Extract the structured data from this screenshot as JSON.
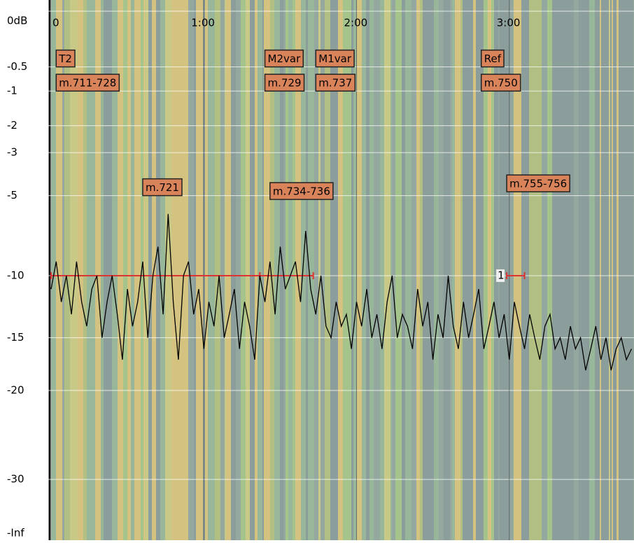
{
  "chart_data": {
    "type": "line",
    "xlim": [
      0,
      229
    ],
    "xticks": [
      {
        "value": 0,
        "label": "0"
      },
      {
        "value": 60,
        "label": "1:00"
      },
      {
        "value": 120,
        "label": "2:00"
      },
      {
        "value": 180,
        "label": "3:00"
      }
    ],
    "y_scale": "meter",
    "yticks": [
      {
        "value": 0,
        "label": "0dB"
      },
      -0.5,
      -1,
      -2,
      -3,
      -5,
      -10,
      -15,
      -20,
      -30
    ],
    "y_bottom_label": "-Inf",
    "grid": true,
    "x": [
      0,
      2,
      4,
      6,
      8,
      10,
      12,
      14,
      16,
      18,
      20,
      22,
      24,
      26,
      28,
      30,
      32,
      34,
      36,
      38,
      40,
      42,
      44,
      46,
      48,
      50,
      52,
      54,
      56,
      58,
      60,
      62,
      64,
      66,
      68,
      70,
      72,
      74,
      76,
      78,
      80,
      82,
      84,
      86,
      88,
      90,
      92,
      94,
      96,
      98,
      100,
      102,
      104,
      106,
      108,
      110,
      112,
      114,
      116,
      118,
      120,
      122,
      124,
      126,
      128,
      130,
      132,
      134,
      136,
      138,
      140,
      142,
      144,
      146,
      148,
      150,
      152,
      154,
      156,
      158,
      160,
      162,
      164,
      166,
      168,
      170,
      172,
      174,
      176,
      178,
      180,
      182,
      184,
      186,
      188,
      190,
      192,
      194,
      196,
      198,
      200,
      202,
      204,
      206,
      208,
      210,
      212,
      214,
      216,
      218,
      220,
      222,
      224,
      226,
      228
    ],
    "series": [
      {
        "name": "level",
        "color": "#000000",
        "values": [
          -11,
          -9,
          -12,
          -10,
          -13,
          -9,
          -12,
          -14,
          -11,
          -10,
          -15,
          -12,
          -10,
          -13,
          -17,
          -11,
          -14,
          -12,
          -9,
          -15,
          -10,
          -8,
          -13,
          -6,
          -12,
          -17,
          -10,
          -9,
          -13,
          -11,
          -16,
          -12,
          -14,
          -10,
          -15,
          -13,
          -11,
          -16,
          -12,
          -14,
          -17,
          -10,
          -12,
          -9,
          -13,
          -8,
          -11,
          -10,
          -9,
          -12,
          -7,
          -11,
          -13,
          -10,
          -14,
          -15,
          -12,
          -14,
          -13,
          -16,
          -12,
          -14,
          -11,
          -15,
          -13,
          -16,
          -12,
          -10,
          -15,
          -13,
          -14,
          -16,
          -11,
          -14,
          -12,
          -17,
          -13,
          -15,
          -10,
          -14,
          -16,
          -12,
          -15,
          -13,
          -11,
          -16,
          -14,
          -12,
          -15,
          -13,
          -17,
          -12,
          -14,
          -16,
          -13,
          -15,
          -17,
          -14,
          -13,
          -16,
          -15,
          -17,
          -14,
          -16,
          -15,
          -18,
          -16,
          -14,
          -17,
          -15,
          -18,
          -16,
          -15,
          -17,
          -16
        ]
      }
    ],
    "ranges": [
      {
        "start": 0,
        "end": 82,
        "level": -10
      },
      {
        "start": 82,
        "end": 103,
        "level": -10
      },
      {
        "start": 179,
        "end": 186,
        "level": -10,
        "label": "1"
      }
    ],
    "annotations": [
      {
        "text": "T2",
        "x": 2,
        "y": -0.5
      },
      {
        "text": "m.711-728",
        "x": 2,
        "y": -1
      },
      {
        "text": "M2var",
        "x": 84,
        "y": -0.5
      },
      {
        "text": "m.729",
        "x": 84,
        "y": -1
      },
      {
        "text": "M1var",
        "x": 104,
        "y": -0.5
      },
      {
        "text": "m.737",
        "x": 104,
        "y": -1
      },
      {
        "text": "Ref",
        "x": 169,
        "y": -0.5
      },
      {
        "text": "m.750",
        "x": 169,
        "y": -1
      },
      {
        "text": "m.721",
        "x": 36,
        "y": -5
      },
      {
        "text": "m.734-736",
        "x": 86,
        "y": -5.2
      },
      {
        "text": "m.755-756",
        "x": 179,
        "y": -4.8
      }
    ]
  }
}
